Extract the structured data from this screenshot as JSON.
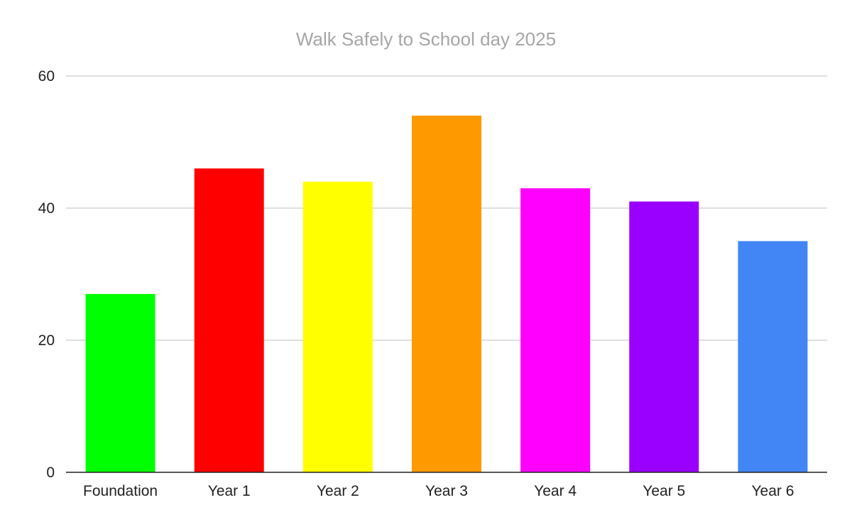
{
  "chart_data": {
    "type": "bar",
    "title": "Walk Safely to School day 2025",
    "categories": [
      "Foundation",
      "Year 1",
      "Year 2",
      "Year 3",
      "Year 4",
      "Year 5",
      "Year 6"
    ],
    "values": [
      27,
      46,
      44,
      54,
      43,
      41,
      35
    ],
    "colors": [
      "#00ff00",
      "#ff0000",
      "#ffff00",
      "#ff9900",
      "#ff00ff",
      "#9900ff",
      "#4285f4"
    ],
    "ylim": [
      0,
      60
    ],
    "yticks": [
      "0",
      "20",
      "40",
      "60"
    ],
    "xlabel": "",
    "ylabel": "",
    "grid": true,
    "legend": "none"
  }
}
